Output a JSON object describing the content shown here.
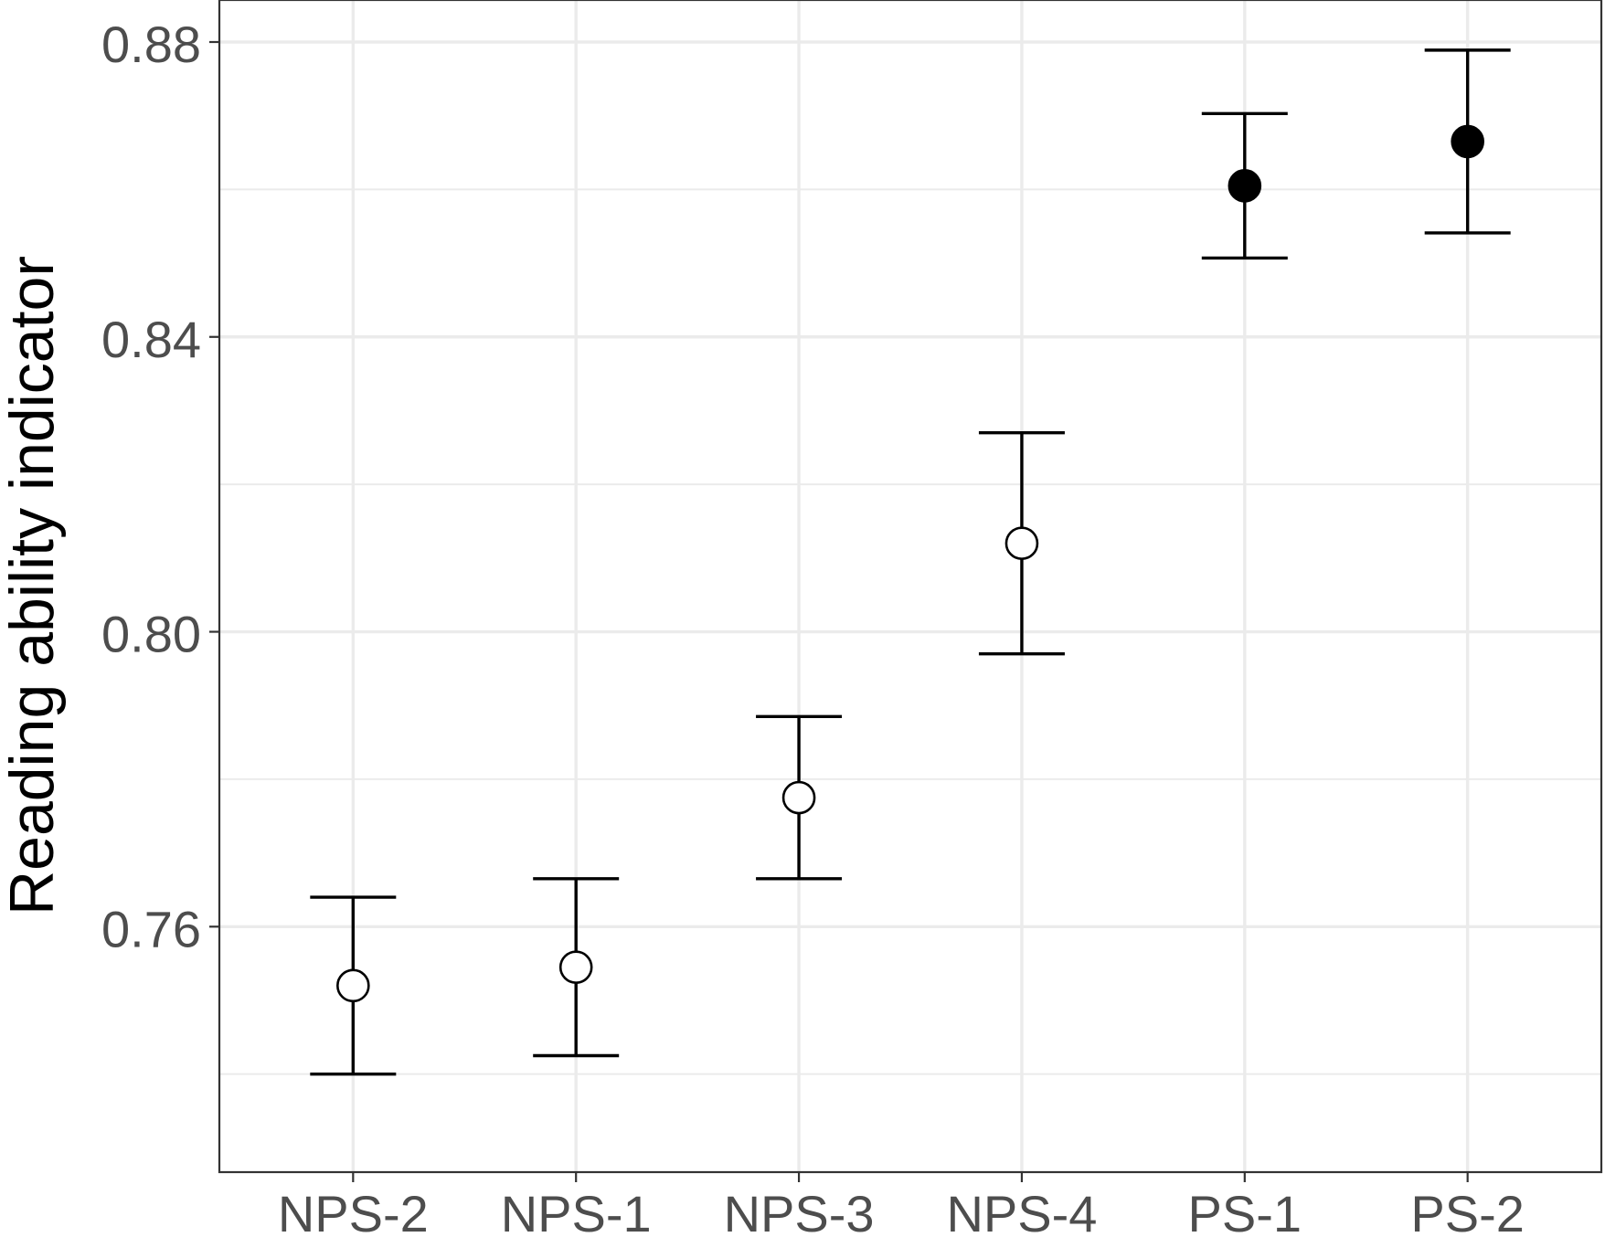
{
  "chart_data": {
    "type": "scatter",
    "subtype": "point-with-error-bars",
    "title": "",
    "xlabel": "",
    "ylabel": "Reading ability indicator",
    "categories": [
      "NPS-2",
      "NPS-1",
      "NPS-3",
      "NPS-4",
      "PS-1",
      "PS-2"
    ],
    "y_ticks": [
      0.76,
      0.8,
      0.84,
      0.88
    ],
    "y_tick_labels": [
      "0.76",
      "0.80",
      "0.84",
      "0.88"
    ],
    "ylim": [
      0.7267,
      0.8857
    ],
    "grid": true,
    "legend": "none",
    "points": [
      {
        "category": "NPS-2",
        "y": 0.752,
        "lower": 0.74,
        "upper": 0.764,
        "filled": false
      },
      {
        "category": "NPS-1",
        "y": 0.7545,
        "lower": 0.7425,
        "upper": 0.7665,
        "filled": false
      },
      {
        "category": "NPS-3",
        "y": 0.7775,
        "lower": 0.7665,
        "upper": 0.7885,
        "filled": false
      },
      {
        "category": "NPS-4",
        "y": 0.812,
        "lower": 0.797,
        "upper": 0.827,
        "filled": false
      },
      {
        "category": "PS-1",
        "y": 0.8605,
        "lower": 0.8507,
        "upper": 0.8703,
        "filled": true
      },
      {
        "category": "PS-2",
        "y": 0.8665,
        "lower": 0.8541,
        "upper": 0.8789,
        "filled": true
      }
    ],
    "colors": {
      "marker": "#000000",
      "grid": "#ebebeb",
      "panel_border": "#333333",
      "tick_text": "#4d4d4d"
    }
  }
}
